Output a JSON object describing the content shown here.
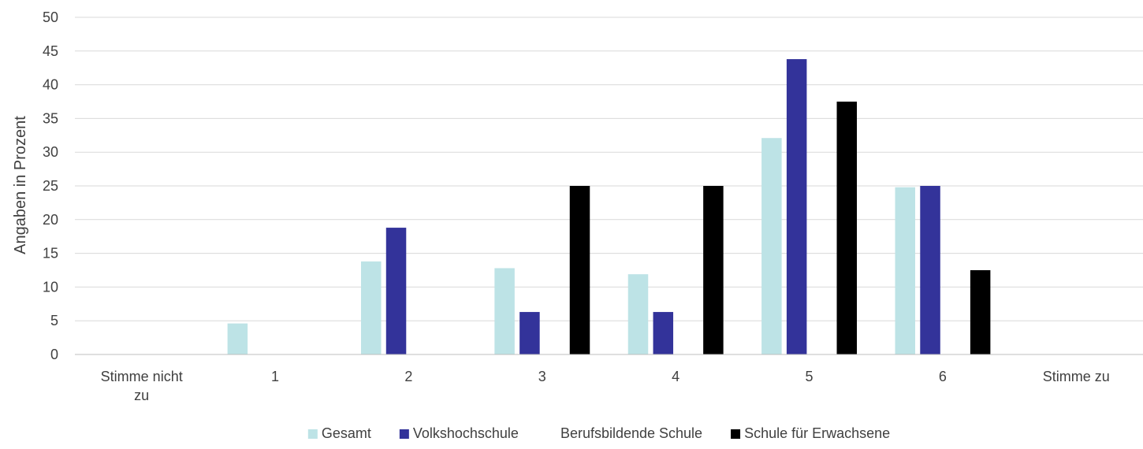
{
  "chart_data": {
    "type": "bar",
    "ylabel": "Angaben in Prozent",
    "xlabel": "",
    "ylim": [
      0,
      50
    ],
    "y_ticks": [
      0,
      5,
      10,
      15,
      20,
      25,
      30,
      35,
      40,
      45,
      50
    ],
    "grid": true,
    "legend_position": "bottom",
    "categories": [
      [
        "Stimme nicht",
        "zu"
      ],
      [
        "1"
      ],
      [
        "2"
      ],
      [
        "3"
      ],
      [
        "4"
      ],
      [
        "5"
      ],
      [
        "6"
      ],
      [
        "Stimme zu"
      ]
    ],
    "series": [
      {
        "name": "Gesamt",
        "color": "#bde3e6",
        "values": [
          0,
          4.6,
          13.8,
          12.8,
          11.9,
          32.1,
          24.8,
          0
        ]
      },
      {
        "name": "Volkshochschule",
        "color": "#33339a",
        "values": [
          0,
          0,
          18.8,
          6.3,
          6.3,
          43.8,
          25.0,
          0
        ]
      },
      {
        "name": "Berufsbildende Schule",
        "color": "#ffffff",
        "values": [
          0,
          0,
          0,
          0,
          0,
          0,
          0,
          0
        ]
      },
      {
        "name": "Schule für Erwachsene",
        "color": "#000000",
        "values": [
          0,
          0,
          0,
          25.0,
          25.0,
          37.5,
          12.5,
          0
        ]
      }
    ],
    "gridline_color": "#d9d9d9",
    "axis_color": "#bfbfbf"
  }
}
